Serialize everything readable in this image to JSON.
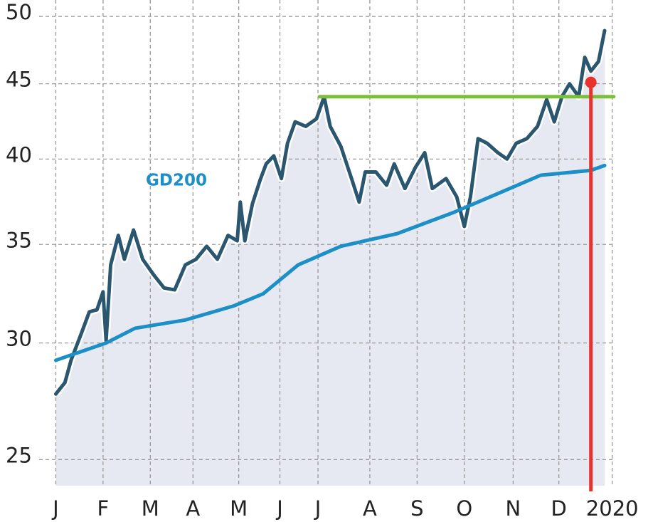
{
  "chart_data": {
    "type": "line",
    "xlim": [
      -10,
      367
    ],
    "ylim": [
      24,
      51.3
    ],
    "ylog": true,
    "grid": true,
    "xticks": [
      {
        "value": 0,
        "label": "J"
      },
      {
        "value": 31,
        "label": "F"
      },
      {
        "value": 62,
        "label": "M"
      },
      {
        "value": 90,
        "label": "A"
      },
      {
        "value": 120,
        "label": "M"
      },
      {
        "value": 147,
        "label": "J"
      },
      {
        "value": 172,
        "label": "J"
      },
      {
        "value": 206,
        "label": "A"
      },
      {
        "value": 237,
        "label": "S"
      },
      {
        "value": 268,
        "label": "O"
      },
      {
        "value": 300,
        "label": "N"
      },
      {
        "value": 330,
        "label": "D"
      },
      {
        "value": 365,
        "label": "2020"
      }
    ],
    "yticks": [
      25,
      30,
      35,
      40,
      45,
      50
    ],
    "series": [
      {
        "color": "#2a5670",
        "fill": "#e6e9f1",
        "x": [
          0,
          6,
          10,
          17,
          22,
          27,
          31,
          33,
          36,
          41,
          45,
          51,
          57,
          64,
          71,
          78,
          85,
          92,
          99,
          106,
          113,
          119,
          121,
          124,
          129,
          134,
          138,
          143,
          148,
          152,
          157,
          164,
          171,
          176,
          180,
          187,
          194,
          199,
          203,
          210,
          217,
          222,
          229,
          236,
          242,
          247,
          256,
          263,
          268,
          272,
          277,
          283,
          290,
          296,
          302,
          309,
          316,
          322,
          327,
          332,
          337,
          343,
          347,
          351,
          356,
          360
        ],
        "values": [
          27.7,
          28.2,
          29.2,
          30.5,
          31.5,
          31.6,
          32.5,
          30.1,
          33.9,
          35.5,
          34.2,
          35.8,
          34.2,
          33.4,
          32.7,
          32.6,
          33.9,
          34.2,
          34.9,
          34.2,
          35.5,
          35.2,
          37.4,
          35.2,
          37.3,
          38.7,
          39.7,
          40.2,
          38.8,
          41.0,
          42.4,
          42.1,
          42.6,
          44.1,
          42.1,
          40.8,
          38.8,
          37.4,
          39.2,
          39.2,
          38.4,
          39.7,
          38.2,
          39.5,
          40.4,
          38.2,
          38.8,
          37.7,
          36.0,
          37.7,
          41.3,
          41.0,
          40.4,
          40.0,
          41.0,
          41.3,
          42.1,
          43.9,
          42.4,
          44.1,
          45.0,
          44.1,
          46.9,
          45.9,
          46.6,
          48.9
        ]
      },
      {
        "name": "GD200",
        "color": "#1b8fc6",
        "x": [
          0,
          33,
          52,
          85,
          117,
          136,
          159,
          187,
          224,
          261,
          290,
          318,
          351,
          360
        ],
        "values": [
          29.2,
          30.0,
          30.7,
          31.1,
          31.8,
          32.4,
          33.9,
          34.9,
          35.6,
          36.8,
          37.9,
          39.0,
          39.3,
          39.6
        ]
      },
      {
        "color": "#7cbf3a",
        "x": [
          173,
          366
        ],
        "values": [
          44.1,
          44.1
        ]
      }
    ],
    "marker": {
      "color": "#e8322e",
      "x": 351,
      "value": 45.1
    }
  }
}
